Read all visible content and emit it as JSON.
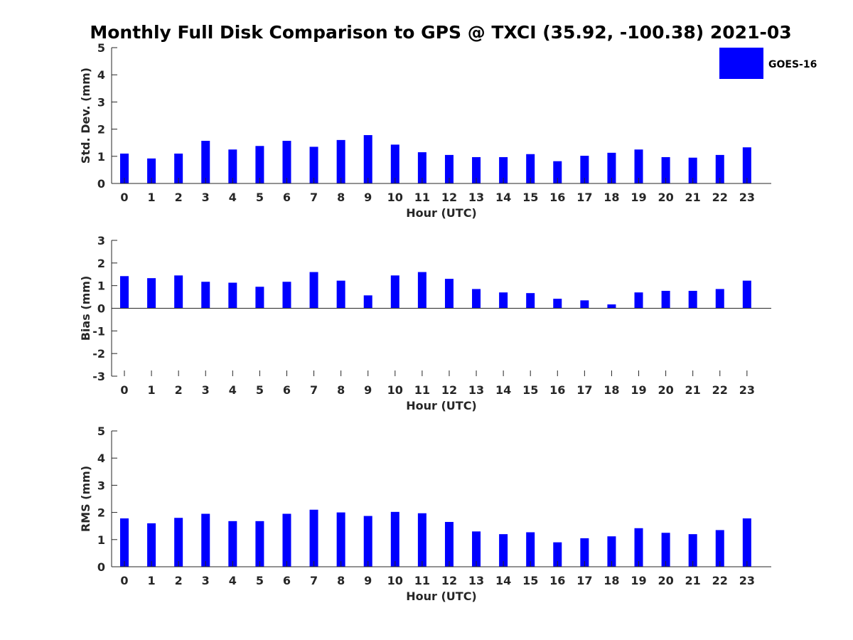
{
  "chart_data": [
    {
      "type": "bar",
      "title": "Monthly Full Disk Comparison to GPS @ TXCI (35.92, -100.38) 2021-03",
      "xlabel": "Hour (UTC)",
      "ylabel": "Std. Dev. (mm)",
      "ylim": [
        0,
        5
      ],
      "yticks": [
        0,
        1,
        2,
        3,
        4,
        5
      ],
      "categories": [
        "0",
        "1",
        "2",
        "3",
        "4",
        "5",
        "6",
        "7",
        "8",
        "9",
        "10",
        "11",
        "12",
        "13",
        "14",
        "15",
        "16",
        "17",
        "18",
        "19",
        "20",
        "21",
        "22",
        "23"
      ],
      "series": [
        {
          "name": "GOES-16",
          "color": "#0000ff",
          "values": [
            1.1,
            0.92,
            1.1,
            1.57,
            1.25,
            1.38,
            1.57,
            1.35,
            1.6,
            1.78,
            1.43,
            1.15,
            1.05,
            0.97,
            0.97,
            1.08,
            0.82,
            1.02,
            1.13,
            1.25,
            0.97,
            0.95,
            1.05,
            1.33
          ]
        }
      ],
      "legend": {
        "position": "top-right"
      }
    },
    {
      "type": "bar",
      "xlabel": "Hour (UTC)",
      "ylabel": "Bias (mm)",
      "ylim": [
        -3,
        3
      ],
      "yticks": [
        -3,
        -2,
        -1,
        0,
        1,
        2,
        3
      ],
      "categories": [
        "0",
        "1",
        "2",
        "3",
        "4",
        "5",
        "6",
        "7",
        "8",
        "9",
        "10",
        "11",
        "12",
        "13",
        "14",
        "15",
        "16",
        "17",
        "18",
        "19",
        "20",
        "21",
        "22",
        "23"
      ],
      "series": [
        {
          "name": "GOES-16",
          "color": "#0000ff",
          "values": [
            1.42,
            1.33,
            1.45,
            1.17,
            1.13,
            0.95,
            1.17,
            1.6,
            1.22,
            0.57,
            1.45,
            1.6,
            1.3,
            0.85,
            0.7,
            0.67,
            0.42,
            0.35,
            0.17,
            0.7,
            0.77,
            0.77,
            0.85,
            1.22
          ]
        }
      ]
    },
    {
      "type": "bar",
      "xlabel": "Hour (UTC)",
      "ylabel": "RMS (mm)",
      "ylim": [
        0,
        5
      ],
      "yticks": [
        0,
        1,
        2,
        3,
        4,
        5
      ],
      "categories": [
        "0",
        "1",
        "2",
        "3",
        "4",
        "5",
        "6",
        "7",
        "8",
        "9",
        "10",
        "11",
        "12",
        "13",
        "14",
        "15",
        "16",
        "17",
        "18",
        "19",
        "20",
        "21",
        "22",
        "23"
      ],
      "series": [
        {
          "name": "GOES-16",
          "color": "#0000ff",
          "values": [
            1.78,
            1.6,
            1.8,
            1.95,
            1.68,
            1.68,
            1.95,
            2.1,
            2.0,
            1.87,
            2.02,
            1.97,
            1.65,
            1.3,
            1.2,
            1.27,
            0.9,
            1.05,
            1.12,
            1.42,
            1.25,
            1.2,
            1.35,
            1.78
          ]
        }
      ]
    }
  ],
  "legend_label": "GOES-16"
}
